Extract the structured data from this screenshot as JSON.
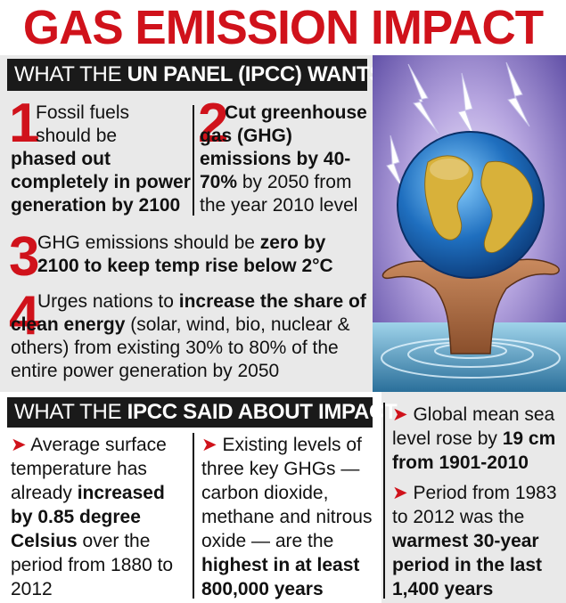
{
  "title": "GAS EMISSION IMPACT",
  "section1": {
    "header_prefix": "WHAT THE ",
    "header_bold": "UN PANEL (IPCC) WANTS",
    "items": [
      {
        "num": "1",
        "lead": "Fossil fuels",
        "line2": "should be",
        "bold": "phased out completely in power generation by 2100"
      },
      {
        "num": "2",
        "bold1": "Cut greenhouse gas (GHG) emissions by 40-70%",
        "rest": " by 2050 from the year 2010 level"
      },
      {
        "num": "3",
        "plain": "GHG emissions should be ",
        "bold": "zero by 2100 to keep temp rise below 2°C"
      },
      {
        "num": "4",
        "plain1": "Urges nations to ",
        "bold": "increase the share of clean energy",
        "plain2": " (solar, wind, bio, nuclear & others) from existing 30% to 80% of the entire power generation by 2050"
      }
    ]
  },
  "section2": {
    "header_prefix": "WHAT THE ",
    "header_bold": "IPCC SAID ABOUT IMPACT",
    "col1": {
      "plain1": "Average surface temperature has already ",
      "bold1": "increased by 0.85 degree Celsius",
      "plain2": " over the period from 1880 to 2012"
    },
    "col2": {
      "plain1": "Existing levels of three key GHGs — carbon dioxide, methane and nitrous oxide — are the ",
      "bold1": "highest in at least 800,000 years"
    },
    "col3a": {
      "plain1": "Global mean sea level rose by ",
      "bold1": "19 cm from 1901-2010"
    },
    "col3b": {
      "plain1": "Period from 1983 to 2012 was the ",
      "bold1": "warmest 30-year period in the last 1,400 years"
    }
  },
  "arrow_glyph": "➤",
  "colors": {
    "accent": "#d0121b",
    "band": "#1a1a1a",
    "panel": "#e9e9e9",
    "ocean": "#1f6fbf",
    "land": "#d8b13a"
  },
  "illustration": {
    "icons": [
      "globe-icon",
      "lightning-icon",
      "hand-icon",
      "water-ripple-icon"
    ]
  }
}
